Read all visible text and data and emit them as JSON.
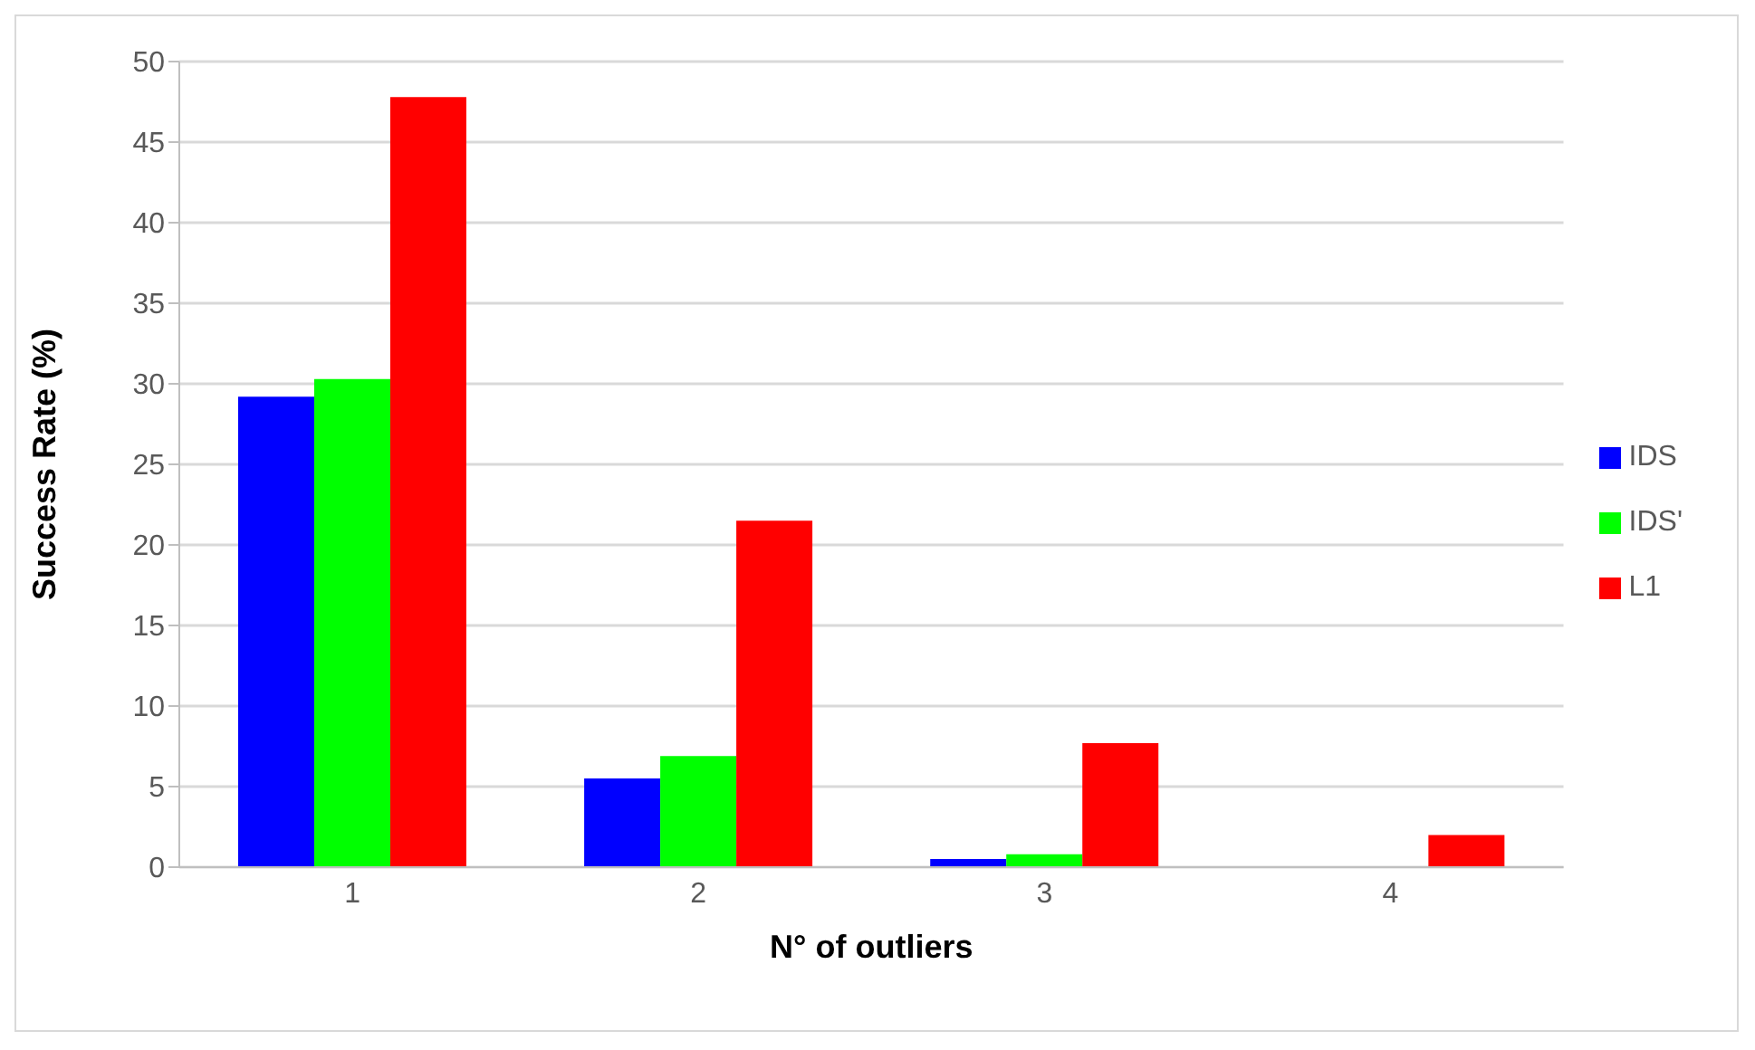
{
  "chart_data": {
    "type": "bar",
    "xlabel": "N° of outliers",
    "ylabel": "Success Rate (%)",
    "categories": [
      "1",
      "2",
      "3",
      "4"
    ],
    "series": [
      {
        "name": "IDS",
        "color": "#0000ff",
        "values": [
          29.2,
          5.5,
          0.5,
          0
        ]
      },
      {
        "name": "IDS'",
        "color": "#00ff00",
        "values": [
          30.3,
          6.9,
          0.8,
          0
        ]
      },
      {
        "name": "L1",
        "color": "#ff0000",
        "values": [
          47.8,
          21.5,
          7.7,
          2.0
        ]
      }
    ],
    "ylim": [
      0,
      50
    ],
    "yticks": [
      0,
      5,
      10,
      15,
      20,
      25,
      30,
      35,
      40,
      45,
      50
    ],
    "grid": "y",
    "legend": "right"
  }
}
